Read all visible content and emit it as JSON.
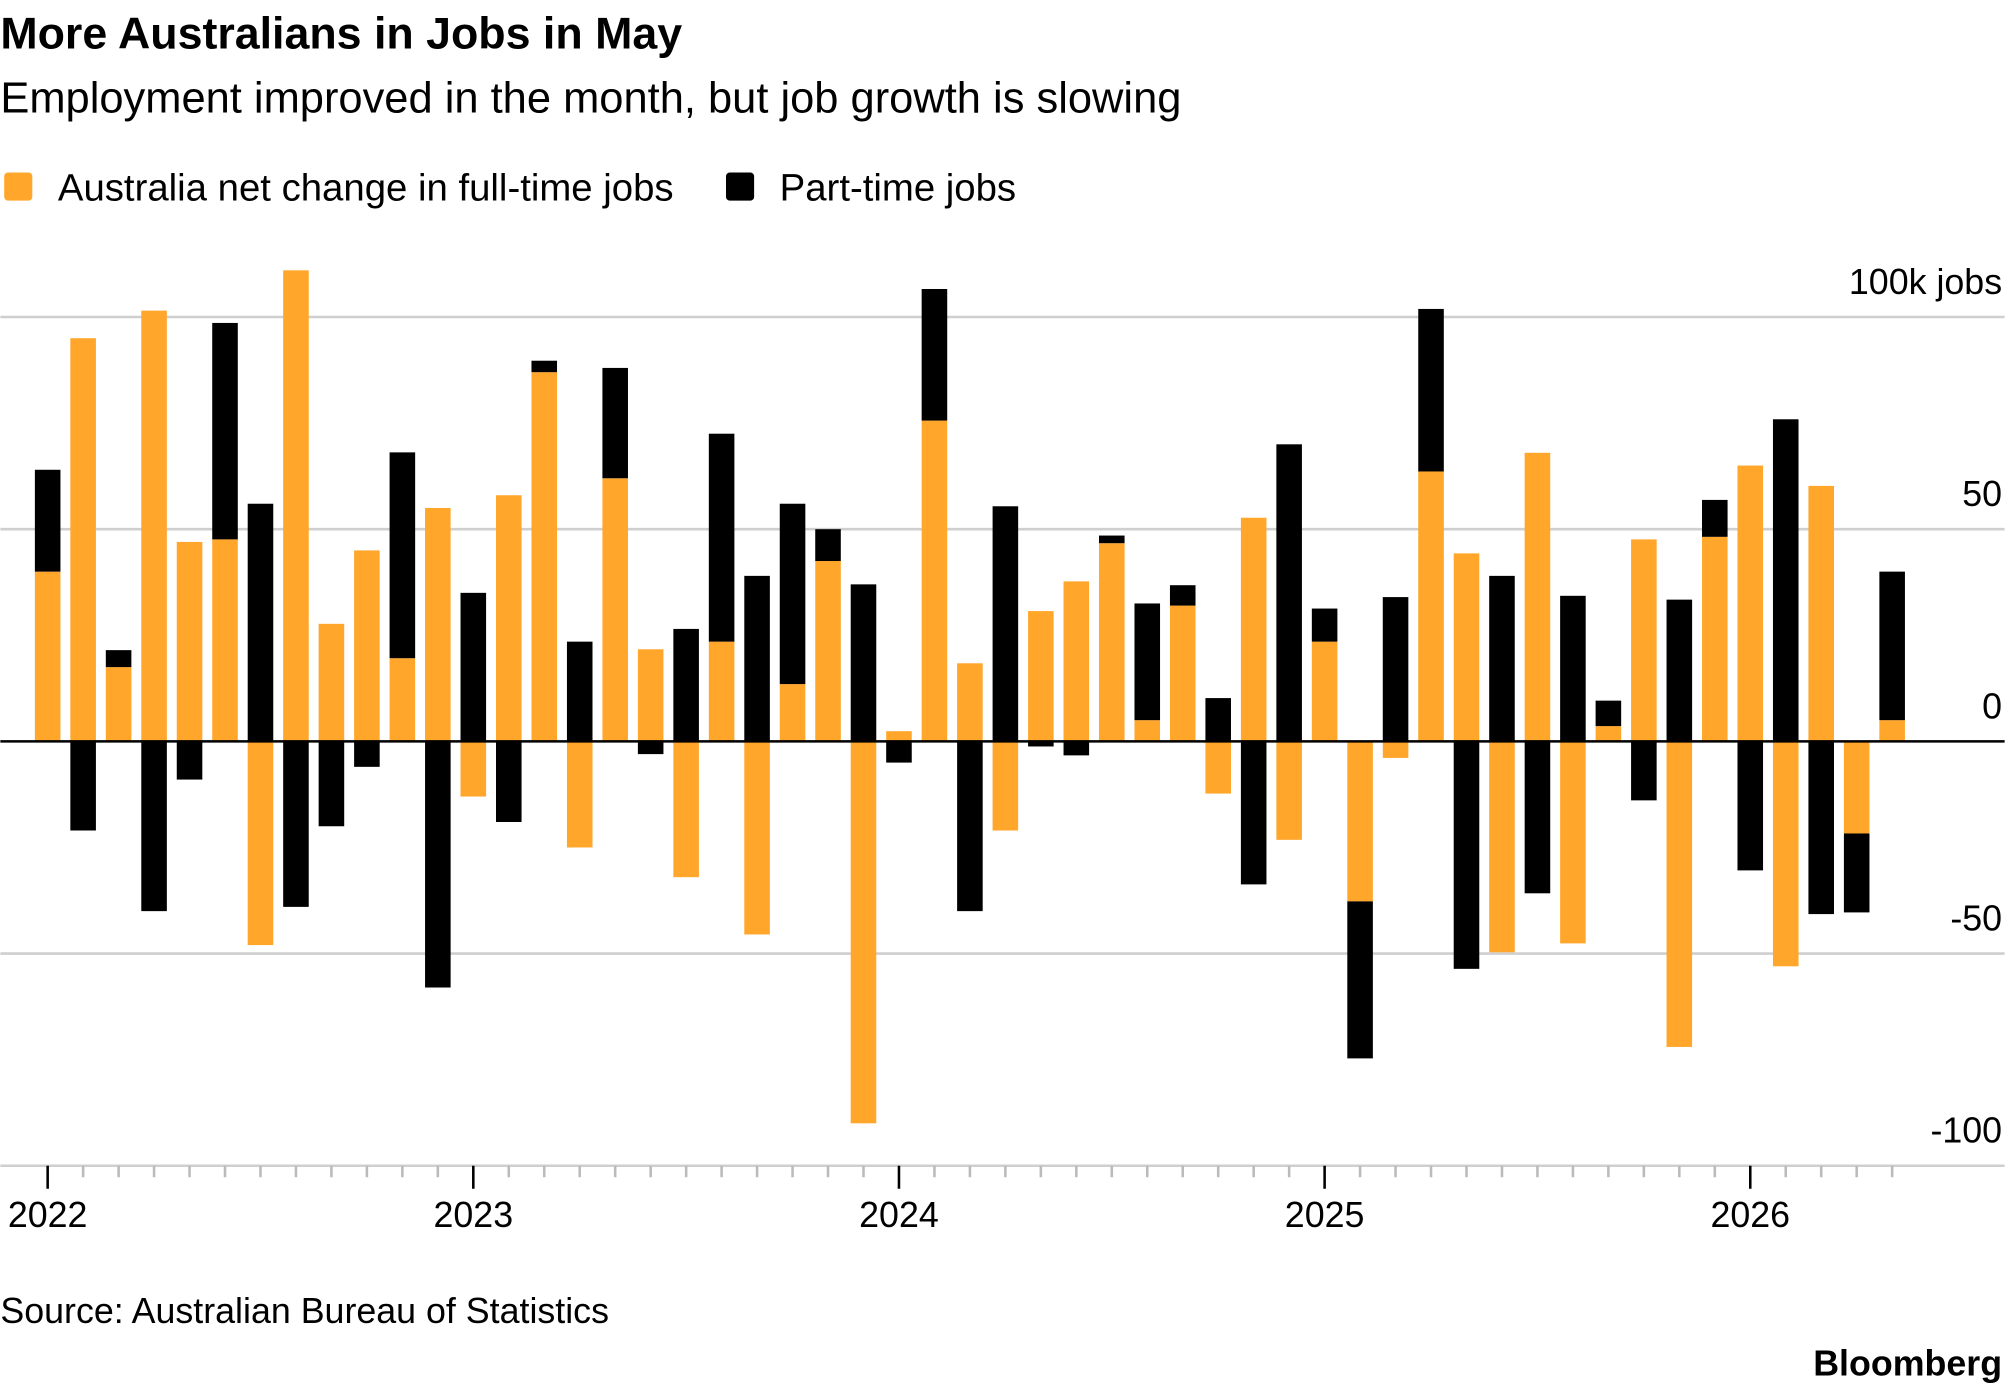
{
  "chart_data": {
    "type": "stacked_bar",
    "title": "More Australians in Jobs in May",
    "subtitle": "Employment improved in the month, but job growth is slowing",
    "source": "Source: Australian Bureau of Statistics",
    "credit": "Bloomberg",
    "categories": [
      "2022",
      null,
      null,
      null,
      null,
      null,
      null,
      null,
      null,
      null,
      null,
      null,
      "2023",
      null,
      null,
      null,
      null,
      null,
      null,
      null,
      null,
      null,
      null,
      null,
      "2024",
      null,
      null,
      null,
      null,
      null,
      null,
      null,
      null,
      null,
      null,
      null,
      "2025",
      null,
      null,
      null,
      null,
      null,
      null,
      null,
      null,
      null,
      null,
      null,
      "2026",
      null,
      null,
      null,
      null
    ],
    "series": [
      {
        "name": "Australia net change in full-time jobs",
        "color": "#ffa62b",
        "values": [
          40,
          95,
          17.5,
          101.5,
          47,
          47.6,
          -48,
          111,
          27.7,
          45,
          19.6,
          55,
          -13,
          58,
          87,
          -25,
          62,
          21.7,
          -32,
          23.5,
          -45.5,
          13.5,
          42.5,
          -90,
          2.4,
          75.6,
          18.4,
          -21,
          30.7,
          37.7,
          46.7,
          5,
          32,
          -12.3,
          52.7,
          -23.2,
          23.5,
          -37.7,
          -3.9,
          63.6,
          44.3,
          -49.7,
          68,
          -47.6,
          3.6,
          47.6,
          -72,
          48.2,
          65,
          -53,
          60.2,
          -21.7,
          5
        ]
      },
      {
        "name": "Part-time jobs",
        "color": "#000000",
        "values": [
          24,
          -21,
          4,
          -40,
          -9,
          51,
          56,
          -39,
          -20,
          -6,
          48.5,
          -58,
          35,
          -19,
          2.7,
          23.5,
          26,
          -3,
          26.5,
          49,
          39,
          42.5,
          7.5,
          37,
          -5,
          31,
          -40,
          55.4,
          -1.2,
          -3.3,
          1.8,
          27.5,
          4.8,
          10.2,
          -33.7,
          70,
          7.8,
          -37,
          34,
          38.3,
          -53.6,
          39,
          -35.8,
          34.3,
          6,
          -13.9,
          33.4,
          8.7,
          -30.4,
          75.9,
          -40.7,
          -18.6,
          35
        ]
      }
    ],
    "ylim": [
      -100,
      110
    ],
    "yticks": [
      -100,
      -50,
      0,
      50,
      {
        "value": 100,
        "label": "100k jobs"
      }
    ],
    "grid": true,
    "legend": "top-left"
  }
}
